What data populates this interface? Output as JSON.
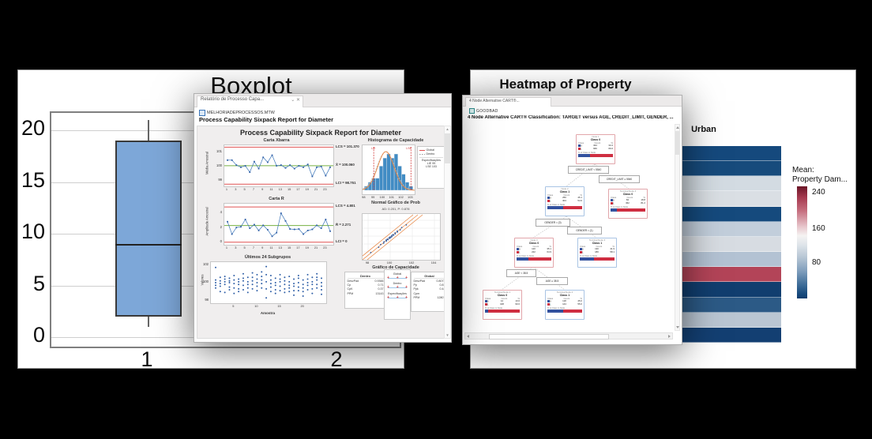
{
  "colors": {
    "control_limit_red": "#e05252",
    "center_green": "#76b043",
    "series_blue": "#3a74b8",
    "marker_blue": "#2f5fa7",
    "hist_bar": "#418cc4",
    "curve_orange": "#e8823c",
    "spec_red": "#d23b3b",
    "cart_blue": "#33519e",
    "cart_red": "#cf2e41",
    "node_border_class0": "#e2a6ab",
    "node_border_class1": "#a9c4e4",
    "box_fill": "#7da7d8",
    "interval_line": "#9ec6e8"
  },
  "boxplot_window": {
    "title": "Boxplot"
  },
  "sixpack_window": {
    "tab": "Relatório de Processo Capa...",
    "tab_collapse_icon": "⌄",
    "tab_close_icon": "✕",
    "file": "MELHORIADEPROCESSOS.MTW",
    "heading": "Process Capability Sixpack Report for Diameter",
    "report_title": "Process Capability Sixpack Report for Diameter",
    "xbar": {
      "title": "Carta Xbarra",
      "ylabel": "Média Amostral",
      "ucl_label": "LCS = 101.370",
      "mean_label": "X̄ = 100.060",
      "lcl_label": "LCI = 98.751"
    },
    "rchart": {
      "title": "Carta R",
      "ylabel": "Amplitude Amostral",
      "ucl_label": "LCS = 4.801",
      "mean_label": "R̄ = 2.271",
      "lcl_label": "LCI = 0"
    },
    "subgroups": {
      "title": "Últimos 24 Subgrupos",
      "ylabel": "Valores",
      "xlabel": "Amostra"
    },
    "histogram": {
      "title": "Histograma de Capacidade",
      "lie_label": "LIE",
      "lse_label": "LSE",
      "legend": {
        "global": "Global",
        "dentro": "Dentro",
        "spec_title": "Especificações",
        "lie": "LIE   99",
        "lse": "LSE  103"
      }
    },
    "probplot": {
      "title": "Normal Gráfico de Prob",
      "subtitle": "AD: 0.201, P: 0.878"
    },
    "capability": {
      "title": "Gráfico de Capacidade",
      "dentro_box": {
        "title": "Dentro",
        "rows": [
          [
            "DesvPad",
            "0.9366"
          ],
          [
            "Cp",
            "0.71"
          ],
          [
            "CpK",
            "0.37"
          ],
          [
            "PPM",
            "13143"
          ]
        ]
      },
      "global_box": {
        "title": "Global",
        "rows": [
          [
            "DesvPad",
            "0.8073"
          ],
          [
            "Pp",
            "0.81"
          ],
          [
            "Ppk",
            "0.44"
          ],
          [
            "Cpm",
            "*"
          ],
          [
            "PPM",
            "12807"
          ]
        ]
      },
      "intervals": [
        "Global",
        "Dentro",
        "Especificações"
      ]
    }
  },
  "cart_window": {
    "tab": "4 Node Alternative CART®...",
    "file": "GOODBAD",
    "heading": "4 Node Alternative CART® Classification: TARGET versus AGE, CREDIT_LIMIT, GENDER, ...",
    "table_header": [
      "Class",
      "Count",
      "%"
    ],
    "bar_label": "% of Class in Node",
    "splits": [
      "CREDIT_LIMIT < 5540",
      "CREDIT_LIMIT ≥ 5540",
      "GENDER = (0)",
      "GENDER = (1)",
      "AGE < 38.5",
      "AGE ≥ 38.5"
    ],
    "nodes": [
      {
        "title": "Node 1",
        "class_label": "Class 0",
        "class_id": 0,
        "rows": [
          [
            "0",
            "334",
            "33.4"
          ],
          [
            "1",
            "666",
            "66.6"
          ]
        ],
        "blue_pct": 33
      },
      {
        "title": "Node 2",
        "class_label": "Class 1",
        "class_id": 1,
        "rows": [
          [
            "0",
            "250",
            "45.1"
          ],
          [
            "1",
            "304",
            "54.9"
          ]
        ],
        "blue_pct": 45
      },
      {
        "title": "Terminal Node 4",
        "class_label": "Class 0",
        "class_id": 0,
        "rows": [
          [
            "0",
            "84",
            "18.8"
          ],
          [
            "1",
            "362",
            "81.2"
          ]
        ],
        "blue_pct": 19
      },
      {
        "title": "Node 3",
        "class_label": "Class 0",
        "class_id": 0,
        "rows": [
          [
            "0",
            "120",
            "35.1"
          ],
          [
            "1",
            "222",
            "64.9"
          ]
        ],
        "blue_pct": 35
      },
      {
        "title": "Terminal Node 3",
        "class_label": "Class 1",
        "class_id": 1,
        "rows": [
          [
            "0",
            "130",
            "41.9"
          ],
          [
            "1",
            "180",
            "58.1"
          ]
        ],
        "blue_pct": 42
      },
      {
        "title": "Terminal Node 1",
        "class_label": "Class 0",
        "class_id": 0,
        "rows": [
          [
            "0",
            "12",
            "10.0"
          ],
          [
            "1",
            "108",
            "90.0"
          ]
        ],
        "blue_pct": 10
      },
      {
        "title": "Terminal Node 2",
        "class_label": "Class 1",
        "class_id": 1,
        "rows": [
          [
            "0",
            "118",
            "45.0"
          ],
          [
            "1",
            "144",
            "55.0"
          ]
        ],
        "blue_pct": 45
      }
    ]
  },
  "heatmap_window": {
    "title": "Heatmap of Property Damage",
    "column_header": "Urban",
    "legend": {
      "title_line1": "Mean:",
      "title_line2": "Property Dam...",
      "ticks": [
        "240",
        "160",
        "80"
      ]
    }
  },
  "chart_data": [
    {
      "id": "boxplot",
      "type": "box",
      "title": "Boxplot",
      "categories": [
        "1",
        "2"
      ],
      "yticks": [
        0,
        5,
        10,
        15,
        20
      ],
      "ylim": [
        -0.9,
        21.7
      ],
      "series": [
        {
          "category": "1",
          "whisker_low": 1,
          "q1": 2,
          "median": 9,
          "q3": 19,
          "whisker_high": 21
        }
      ]
    },
    {
      "id": "xbar_chart",
      "type": "line",
      "title": "Carta Xbarra",
      "ylabel": "Média Amostral",
      "center": 100.06,
      "ucl": 101.37,
      "lcl": 98.751,
      "ylim": [
        98.6,
        101.5
      ],
      "yticks": [
        101,
        100,
        99
      ],
      "xticks": [
        1,
        3,
        5,
        7,
        9,
        11,
        13,
        15,
        17,
        19,
        21,
        23
      ],
      "values": [
        100.45,
        100.45,
        100.1,
        99.95,
        100.05,
        99.6,
        100.35,
        99.85,
        100.65,
        100.3,
        100.8,
        100.05,
        100.1,
        99.9,
        100.1,
        99.85,
        100.05,
        99.95,
        100.15,
        99.3,
        99.95,
        100.0,
        99.35,
        99.95
      ]
    },
    {
      "id": "r_chart",
      "type": "line",
      "title": "Carta R",
      "ylabel": "Amplitude Amostral",
      "center": 2.271,
      "ucl": 4.801,
      "lcl": 0,
      "ylim": [
        -0.35,
        5.25
      ],
      "yticks": [
        4,
        2,
        0
      ],
      "xticks": [
        1,
        3,
        5,
        7,
        9,
        11,
        13,
        15,
        17,
        19,
        21,
        23
      ],
      "values": [
        2.8,
        1.1,
        2.0,
        2.1,
        3.1,
        1.9,
        2.4,
        1.6,
        2.3,
        1.7,
        0.8,
        1.3,
        3.95,
        2.9,
        1.8,
        1.75,
        1.8,
        1.1,
        1.6,
        1.75,
        2.3,
        1.9,
        3.1,
        1.5
      ]
    },
    {
      "id": "last_24_subgroups",
      "type": "scatter",
      "title": "Últimos 24 Subgrupos",
      "ylabel": "Valores",
      "xlabel": "Amostra",
      "yticks": [
        102,
        100,
        98
      ],
      "xticks": [
        5,
        10,
        15,
        20
      ],
      "ylim": [
        97.7,
        102.3
      ],
      "values": [
        [
          101.7,
          100.3,
          100.0,
          99.7,
          99.4
        ],
        [
          100.6,
          100.2,
          99.9,
          99.6,
          99.0
        ],
        [
          100.7,
          100.4,
          100.1,
          99.8,
          98.9
        ],
        [
          100.5,
          100.2,
          100.0,
          99.5,
          99.2
        ],
        [
          100.8,
          100.3,
          99.9,
          99.4,
          98.8
        ],
        [
          100.4,
          100.1,
          99.8,
          99.3,
          99.0
        ],
        [
          101.0,
          100.5,
          100.2,
          99.7,
          99.2
        ],
        [
          100.6,
          100.1,
          99.8,
          99.4,
          98.9
        ],
        [
          101.1,
          100.6,
          100.2,
          99.8,
          99.3
        ],
        [
          100.9,
          100.4,
          100.0,
          99.6,
          99.1
        ],
        [
          101.2,
          100.7,
          100.3,
          99.9,
          99.4
        ],
        [
          101.8,
          100.9,
          100.1,
          99.3,
          98.3
        ],
        [
          100.8,
          100.3,
          99.9,
          99.5,
          99.0
        ],
        [
          100.5,
          100.0,
          99.7,
          99.2,
          98.8
        ],
        [
          100.9,
          100.4,
          100.1,
          99.6,
          99.1
        ],
        [
          100.6,
          100.2,
          99.8,
          99.3,
          98.9
        ],
        [
          100.7,
          100.1,
          99.7,
          99.4,
          99.0
        ],
        [
          100.4,
          99.9,
          99.6,
          99.1,
          98.6
        ],
        [
          100.8,
          100.5,
          100.0,
          99.5,
          99.1
        ],
        [
          100.3,
          99.8,
          99.4,
          99.0,
          98.5
        ],
        [
          100.9,
          100.4,
          100.0,
          99.7,
          99.2
        ],
        [
          100.6,
          100.1,
          99.8,
          99.3,
          98.8
        ],
        [
          101.0,
          100.6,
          100.3,
          99.8,
          99.4
        ],
        [
          100.5,
          100.0,
          99.6,
          99.2,
          98.7
        ]
      ]
    },
    {
      "id": "capability_histogram",
      "type": "bar",
      "title": "Histograma de Capacidade",
      "xlim": [
        97.8,
        103.4
      ],
      "bin_start": 98.0,
      "bin_width": 0.4,
      "heights": [
        1,
        2,
        3,
        3,
        6,
        8,
        9,
        8,
        9,
        6,
        4,
        2,
        1
      ],
      "specs": {
        "LIE": 99,
        "LSE": 103
      },
      "xticks": [
        98,
        99,
        100,
        101,
        102,
        103
      ]
    },
    {
      "id": "normal_prob_plot",
      "type": "scatter",
      "title": "Normal Gráfico de Prob",
      "annotation": "AD: 0.201, P: 0.878",
      "xlim": [
        97.5,
        104.5
      ],
      "xticks": [
        98,
        100,
        102,
        104
      ],
      "points_x": [
        98.3,
        98.9,
        99.2,
        99.35,
        99.5,
        99.6,
        99.7,
        99.75,
        99.8,
        99.9,
        99.95,
        100.0,
        100.05,
        100.1,
        100.2,
        100.25,
        100.3,
        100.4,
        100.5,
        100.6,
        100.7,
        100.85,
        101.1,
        101.4
      ]
    },
    {
      "id": "property_damage_heatmap",
      "type": "heatmap",
      "column": "Urban",
      "legend": {
        "title": "Mean: Property Dam...",
        "ticks": [
          240,
          160,
          80
        ]
      },
      "rows": [
        {
          "value": 22,
          "color": "#15497d"
        },
        {
          "value": 24,
          "color": "#174b7c"
        },
        {
          "value": 138,
          "color": "#d3dbe2"
        },
        {
          "value": 142,
          "color": "#dadfe4"
        },
        {
          "value": 23,
          "color": "#154a7d"
        },
        {
          "value": 118,
          "color": "#c2cedb"
        },
        {
          "value": 140,
          "color": "#d7dce2"
        },
        {
          "value": 104,
          "color": "#b3c2d3"
        },
        {
          "value": 233,
          "color": "#b34458"
        },
        {
          "value": 14,
          "color": "#113e6f"
        },
        {
          "value": 46,
          "color": "#2c5a86"
        },
        {
          "value": 112,
          "color": "#bac6d3"
        },
        {
          "value": 18,
          "color": "#133f72"
        }
      ]
    }
  ]
}
